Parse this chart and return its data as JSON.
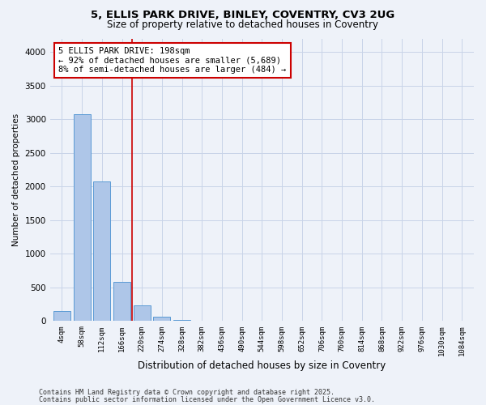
{
  "title_line1": "5, ELLIS PARK DRIVE, BINLEY, COVENTRY, CV3 2UG",
  "title_line2": "Size of property relative to detached houses in Coventry",
  "xlabel": "Distribution of detached houses by size in Coventry",
  "ylabel": "Number of detached properties",
  "bin_labels": [
    "4sqm",
    "58sqm",
    "112sqm",
    "166sqm",
    "220sqm",
    "274sqm",
    "328sqm",
    "382sqm",
    "436sqm",
    "490sqm",
    "544sqm",
    "598sqm",
    "652sqm",
    "706sqm",
    "760sqm",
    "814sqm",
    "868sqm",
    "922sqm",
    "976sqm",
    "1030sqm",
    "1084sqm"
  ],
  "bar_values": [
    150,
    3080,
    2080,
    580,
    230,
    70,
    20,
    5,
    2,
    0,
    0,
    0,
    0,
    0,
    0,
    0,
    0,
    0,
    0,
    0,
    0
  ],
  "bar_color": "#aec6e8",
  "bar_edge_color": "#5b9bd5",
  "property_line_x": 3.5,
  "annotation_text": "5 ELLIS PARK DRIVE: 198sqm\n← 92% of detached houses are smaller (5,689)\n8% of semi-detached houses are larger (484) →",
  "annotation_box_color": "#ffffff",
  "annotation_box_edge_color": "#cc0000",
  "vertical_line_color": "#cc0000",
  "ylim": [
    0,
    4200
  ],
  "yticks": [
    0,
    500,
    1000,
    1500,
    2000,
    2500,
    3000,
    3500,
    4000
  ],
  "footer_line1": "Contains HM Land Registry data © Crown copyright and database right 2025.",
  "footer_line2": "Contains public sector information licensed under the Open Government Licence v3.0.",
  "background_color": "#eef2f9",
  "plot_bg_color": "#eef2f9",
  "grid_color": "#c8d4e8"
}
